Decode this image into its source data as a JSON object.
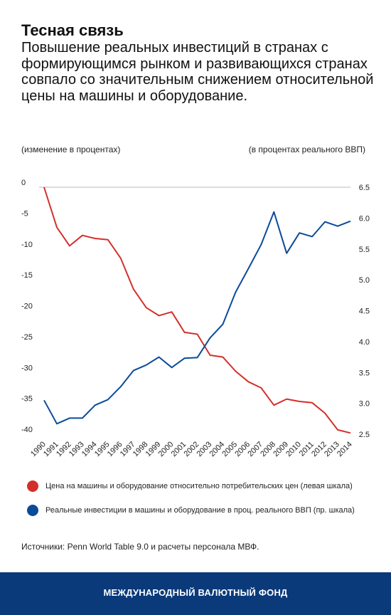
{
  "header": {
    "title": "Тесная связь",
    "subtitle": "Повышение реальных инвестиций в странах с формирующимся рынком и развивающихся странах совпало со значительным снижением относительной цены на машины и оборудование."
  },
  "chart_data": {
    "type": "line",
    "left_axis_label": "(изменение в процентах)",
    "right_axis_label": "(в процентах реального ВВП)",
    "x": [
      "1990",
      "1991",
      "1992",
      "1993",
      "1994",
      "1995",
      "1996",
      "1997",
      "1998",
      "1999",
      "2000",
      "2001",
      "2002",
      "2003",
      "2004",
      "2005",
      "2006",
      "2007",
      "2008",
      "2009",
      "2010",
      "2011",
      "2012",
      "2013",
      "2014"
    ],
    "left_ylim": [
      -40,
      0
    ],
    "left_ticks": [
      "0",
      "-5",
      "-10",
      "-15",
      "-20",
      "-25",
      "-30",
      "-35",
      "-40"
    ],
    "right_ylim": [
      2.5,
      6.5
    ],
    "right_ticks": [
      "6.5",
      "6.0",
      "5.5",
      "5.0",
      "4.5",
      "4.0",
      "3.5",
      "3.0",
      "2.5"
    ],
    "series": [
      {
        "name": "Цена на машины и оборудование относительно потребительских цен (левая шкала)",
        "axis": "left",
        "color": "#d3302a",
        "values": [
          0,
          -6.5,
          -9.5,
          -7.8,
          -8.3,
          -8.5,
          -11.5,
          -16.5,
          -19.5,
          -20.8,
          -20.2,
          -23.5,
          -23.8,
          -27.2,
          -27.5,
          -29.8,
          -31.5,
          -32.5,
          -35.3,
          -34.3,
          -34.7,
          -34.9,
          -36.6,
          -39.3,
          -39.8
        ]
      },
      {
        "name": "Реальные инвестиции в машины и оборудование в проц. реального ВВП (пр. шкала)",
        "axis": "right",
        "color": "#0a4b99",
        "values": [
          3.05,
          2.67,
          2.76,
          2.76,
          2.97,
          3.06,
          3.27,
          3.53,
          3.62,
          3.75,
          3.58,
          3.73,
          3.74,
          4.06,
          4.28,
          4.8,
          5.18,
          5.57,
          6.1,
          5.43,
          5.76,
          5.7,
          5.94,
          5.87,
          5.95
        ]
      }
    ],
    "grid": false,
    "zero_line": true
  },
  "source_text": "Источники: Penn World Table 9.0 и расчеты персонала МВФ.",
  "footer": {
    "org": "МЕЖДУНАРОДНЫЙ ВАЛЮТНЫЙ ФОНД"
  }
}
